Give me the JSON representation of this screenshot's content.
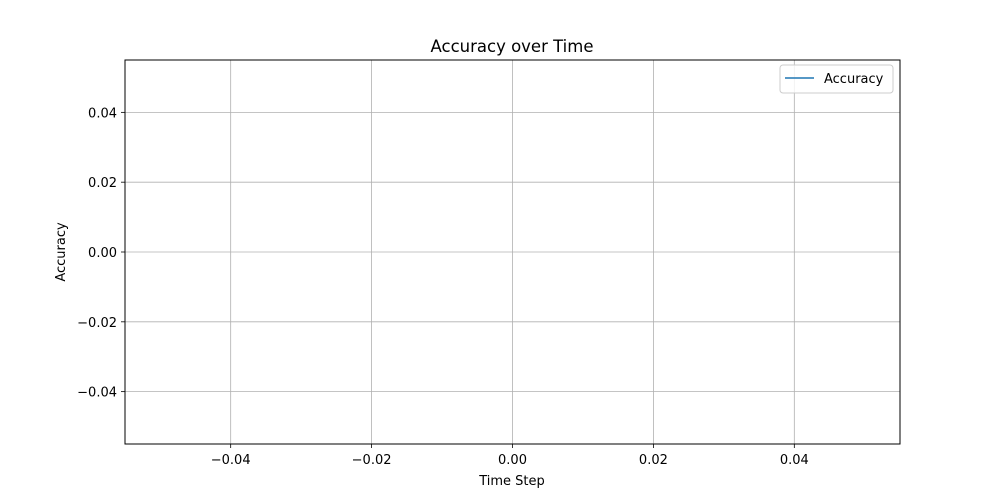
{
  "chart_data": {
    "type": "line",
    "title": "Accuracy over Time",
    "xlabel": "Time Step",
    "ylabel": "Accuracy",
    "xlim": [
      -0.055,
      0.055
    ],
    "ylim": [
      -0.055,
      0.055
    ],
    "x_ticks": [
      -0.04,
      -0.02,
      0.0,
      0.02,
      0.04
    ],
    "y_ticks": [
      -0.04,
      -0.02,
      0.0,
      0.02,
      0.04
    ],
    "x_tick_labels": [
      "−0.04",
      "−0.02",
      "0.00",
      "0.02",
      "0.04"
    ],
    "y_tick_labels": [
      "−0.04",
      "−0.02",
      "0.00",
      "0.02",
      "0.04"
    ],
    "grid": true,
    "legend_position": "top-right",
    "series": [
      {
        "name": "Accuracy",
        "color": "#1f77b4",
        "x": [],
        "y": []
      }
    ],
    "grid_color": "#b0b0b0",
    "axes_color": "#000000"
  }
}
